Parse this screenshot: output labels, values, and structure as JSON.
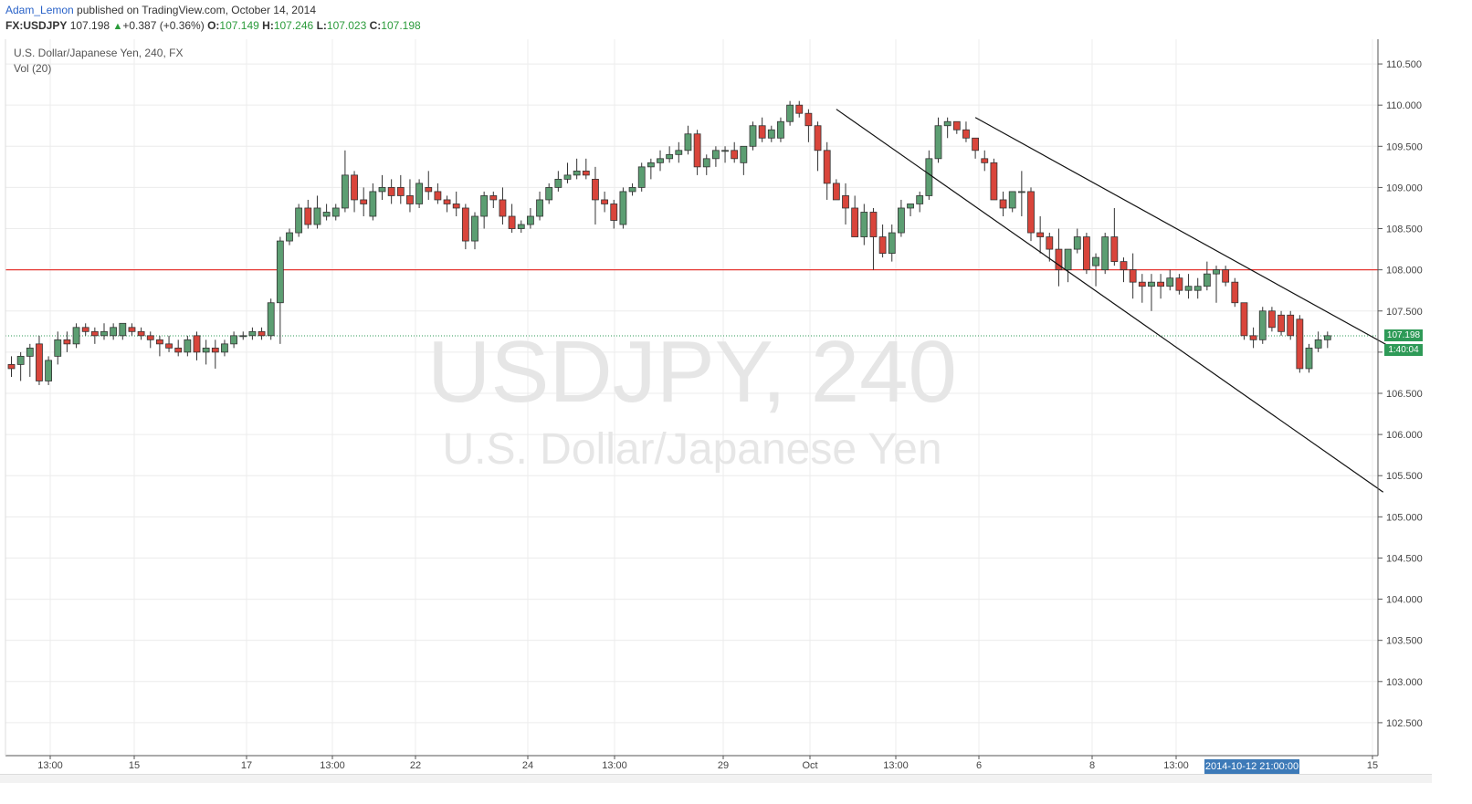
{
  "header": {
    "author": "Adam_Lemon",
    "published_text": " published on TradingView.com, October 14, 2014",
    "symbol": "FX:USDJPY",
    "last": "107.198",
    "change": "+0.387 (+0.36%)",
    "up_arrow": "▲",
    "o_label": "O:",
    "o": "107.149",
    "h_label": "H:",
    "h": "107.246",
    "l_label": "L:",
    "l": "107.023",
    "c_label": "C:",
    "c": "107.198"
  },
  "legend": {
    "title": "U.S. Dollar/Japanese Yen, 240, FX",
    "volume": "Vol (20)"
  },
  "watermark": {
    "line1": "USDJPY, 240",
    "line2": "U.S. Dollar/Japanese Yen"
  },
  "price_tags": {
    "last_price": "107.198",
    "countdown": "1:40:04"
  },
  "time_tag": "2014-10-12 21:00:00",
  "colors": {
    "up_candle": "#5c9e72",
    "down_candle": "#d9453b",
    "support_line": "#e53935",
    "price_tag": "#2e9a57",
    "time_tag": "#3d7ab8"
  },
  "chart_data": {
    "type": "candlestick",
    "y_range": [
      102.1,
      110.8
    ],
    "y_ticks": [
      "110.500",
      "110.000",
      "109.500",
      "109.000",
      "108.500",
      "108.000",
      "107.500",
      "107.000",
      "106.500",
      "106.000",
      "105.500",
      "105.000",
      "104.500",
      "104.000",
      "103.500",
      "103.000",
      "102.500"
    ],
    "x_tick_labels": [
      "13:00",
      "15",
      "17",
      "13:00",
      "22",
      "24",
      "13:00",
      "29",
      "Oct",
      "13:00",
      "6",
      "8",
      "13:00",
      "15"
    ],
    "horizontal_line": 108.0,
    "last_price_line": 107.198,
    "candles": [
      [
        106.85,
        106.95,
        106.7,
        106.8
      ],
      [
        106.85,
        107.0,
        106.65,
        106.95
      ],
      [
        106.95,
        107.1,
        106.7,
        107.05
      ],
      [
        107.1,
        107.2,
        106.6,
        106.65
      ],
      [
        106.65,
        106.95,
        106.6,
        106.9
      ],
      [
        106.95,
        107.25,
        106.85,
        107.15
      ],
      [
        107.15,
        107.25,
        107.0,
        107.1
      ],
      [
        107.1,
        107.35,
        107.05,
        107.3
      ],
      [
        107.3,
        107.35,
        107.2,
        107.25
      ],
      [
        107.25,
        107.3,
        107.1,
        107.2
      ],
      [
        107.2,
        107.35,
        107.15,
        107.25
      ],
      [
        107.2,
        107.35,
        107.15,
        107.3
      ],
      [
        107.2,
        107.35,
        107.15,
        107.35
      ],
      [
        107.3,
        107.35,
        107.2,
        107.25
      ],
      [
        107.25,
        107.3,
        107.15,
        107.2
      ],
      [
        107.2,
        107.25,
        107.05,
        107.15
      ],
      [
        107.15,
        107.2,
        106.95,
        107.1
      ],
      [
        107.1,
        107.2,
        107.0,
        107.05
      ],
      [
        107.05,
        107.15,
        106.95,
        107.0
      ],
      [
        107.0,
        107.2,
        106.95,
        107.15
      ],
      [
        107.2,
        107.25,
        106.9,
        107.0
      ],
      [
        107.0,
        107.15,
        106.85,
        107.05
      ],
      [
        107.05,
        107.15,
        106.8,
        107.0
      ],
      [
        107.0,
        107.15,
        106.95,
        107.1
      ],
      [
        107.1,
        107.25,
        107.05,
        107.2
      ],
      [
        107.2,
        107.25,
        107.15,
        107.2
      ],
      [
        107.2,
        107.3,
        107.15,
        107.25
      ],
      [
        107.25,
        107.3,
        107.15,
        107.2
      ],
      [
        107.2,
        107.65,
        107.15,
        107.6
      ],
      [
        107.6,
        108.4,
        107.1,
        108.35
      ],
      [
        108.35,
        108.5,
        108.3,
        108.45
      ],
      [
        108.45,
        108.8,
        108.4,
        108.75
      ],
      [
        108.75,
        108.85,
        108.5,
        108.55
      ],
      [
        108.55,
        108.9,
        108.5,
        108.75
      ],
      [
        108.65,
        108.8,
        108.6,
        108.7
      ],
      [
        108.65,
        108.8,
        108.6,
        108.75
      ],
      [
        108.75,
        109.45,
        108.7,
        109.15
      ],
      [
        109.15,
        109.2,
        108.7,
        108.85
      ],
      [
        108.85,
        109.0,
        108.65,
        108.8
      ],
      [
        108.65,
        109.05,
        108.6,
        108.95
      ],
      [
        108.95,
        109.15,
        108.85,
        109.0
      ],
      [
        109.0,
        109.1,
        108.8,
        108.9
      ],
      [
        109.0,
        109.15,
        108.8,
        108.9
      ],
      [
        108.9,
        109.1,
        108.7,
        108.8
      ],
      [
        108.8,
        109.1,
        108.75,
        109.05
      ],
      [
        109.0,
        109.2,
        108.85,
        108.95
      ],
      [
        108.95,
        109.05,
        108.8,
        108.85
      ],
      [
        108.85,
        108.9,
        108.7,
        108.8
      ],
      [
        108.8,
        108.95,
        108.65,
        108.75
      ],
      [
        108.75,
        108.8,
        108.25,
        108.35
      ],
      [
        108.35,
        108.7,
        108.25,
        108.65
      ],
      [
        108.65,
        108.95,
        108.5,
        108.9
      ],
      [
        108.9,
        108.95,
        108.75,
        108.85
      ],
      [
        108.85,
        109.0,
        108.55,
        108.65
      ],
      [
        108.65,
        108.8,
        108.45,
        108.5
      ],
      [
        108.5,
        108.6,
        108.45,
        108.55
      ],
      [
        108.55,
        108.75,
        108.5,
        108.65
      ],
      [
        108.65,
        108.95,
        108.6,
        108.85
      ],
      [
        108.85,
        109.05,
        108.8,
        109.0
      ],
      [
        109.0,
        109.2,
        108.95,
        109.1
      ],
      [
        109.1,
        109.3,
        109.05,
        109.15
      ],
      [
        109.15,
        109.35,
        109.1,
        109.2
      ],
      [
        109.2,
        109.35,
        109.1,
        109.15
      ],
      [
        109.1,
        109.25,
        108.55,
        108.85
      ],
      [
        108.85,
        108.95,
        108.7,
        108.8
      ],
      [
        108.8,
        108.85,
        108.5,
        108.6
      ],
      [
        108.55,
        109.0,
        108.5,
        108.95
      ],
      [
        108.95,
        109.05,
        108.9,
        109.0
      ],
      [
        109.0,
        109.3,
        108.95,
        109.25
      ],
      [
        109.25,
        109.35,
        109.1,
        109.3
      ],
      [
        109.3,
        109.45,
        109.2,
        109.35
      ],
      [
        109.35,
        109.5,
        109.3,
        109.4
      ],
      [
        109.4,
        109.55,
        109.3,
        109.45
      ],
      [
        109.45,
        109.75,
        109.4,
        109.65
      ],
      [
        109.65,
        109.7,
        109.15,
        109.25
      ],
      [
        109.25,
        109.4,
        109.15,
        109.35
      ],
      [
        109.35,
        109.5,
        109.25,
        109.45
      ],
      [
        109.45,
        109.5,
        109.3,
        109.45
      ],
      [
        109.45,
        109.55,
        109.3,
        109.35
      ],
      [
        109.3,
        109.5,
        109.15,
        109.5
      ],
      [
        109.5,
        109.8,
        109.45,
        109.75
      ],
      [
        109.75,
        109.85,
        109.55,
        109.6
      ],
      [
        109.6,
        109.75,
        109.55,
        109.7
      ],
      [
        109.6,
        109.85,
        109.55,
        109.8
      ],
      [
        109.8,
        110.05,
        109.75,
        110.0
      ],
      [
        110.0,
        110.05,
        109.85,
        109.9
      ],
      [
        109.9,
        109.95,
        109.55,
        109.75
      ],
      [
        109.75,
        109.8,
        109.2,
        109.45
      ],
      [
        109.45,
        109.55,
        108.85,
        109.05
      ],
      [
        109.05,
        109.1,
        108.85,
        108.85
      ],
      [
        108.9,
        109.05,
        108.55,
        108.75
      ],
      [
        108.75,
        108.9,
        108.4,
        108.4
      ],
      [
        108.4,
        108.8,
        108.3,
        108.7
      ],
      [
        108.7,
        108.75,
        108.0,
        108.4
      ],
      [
        108.4,
        108.55,
        108.15,
        108.2
      ],
      [
        108.2,
        108.55,
        108.1,
        108.45
      ],
      [
        108.45,
        108.85,
        108.4,
        108.75
      ],
      [
        108.75,
        108.8,
        108.65,
        108.8
      ],
      [
        108.8,
        108.95,
        108.7,
        108.9
      ],
      [
        108.9,
        109.45,
        108.85,
        109.35
      ],
      [
        109.35,
        109.85,
        109.3,
        109.75
      ],
      [
        109.75,
        109.85,
        109.6,
        109.8
      ],
      [
        109.8,
        109.8,
        109.65,
        109.7
      ],
      [
        109.7,
        109.8,
        109.55,
        109.6
      ],
      [
        109.6,
        109.6,
        109.35,
        109.45
      ],
      [
        109.35,
        109.45,
        109.2,
        109.3
      ],
      [
        109.3,
        109.35,
        108.85,
        108.85
      ],
      [
        108.85,
        108.95,
        108.65,
        108.75
      ],
      [
        108.75,
        108.95,
        108.7,
        108.95
      ],
      [
        108.95,
        109.2,
        108.65,
        108.95
      ],
      [
        108.95,
        109.0,
        108.35,
        108.45
      ],
      [
        108.45,
        108.65,
        108.2,
        108.4
      ],
      [
        108.4,
        108.45,
        108.1,
        108.25
      ],
      [
        108.25,
        108.5,
        107.8,
        108.0
      ],
      [
        108.0,
        108.25,
        107.85,
        108.25
      ],
      [
        108.25,
        108.5,
        108.2,
        108.4
      ],
      [
        108.4,
        108.45,
        107.95,
        108.0
      ],
      [
        108.05,
        108.2,
        107.8,
        108.15
      ],
      [
        108.0,
        108.45,
        107.95,
        108.4
      ],
      [
        108.4,
        108.75,
        108.05,
        108.1
      ],
      [
        108.1,
        108.15,
        107.85,
        108.0
      ],
      [
        108.0,
        108.2,
        107.65,
        107.85
      ],
      [
        107.85,
        107.95,
        107.6,
        107.8
      ],
      [
        107.8,
        107.95,
        107.5,
        107.85
      ],
      [
        107.85,
        107.95,
        107.65,
        107.8
      ],
      [
        107.8,
        108.0,
        107.75,
        107.9
      ],
      [
        107.9,
        107.95,
        107.7,
        107.75
      ],
      [
        107.75,
        107.95,
        107.65,
        107.8
      ],
      [
        107.75,
        107.9,
        107.65,
        107.8
      ],
      [
        107.8,
        108.1,
        107.75,
        107.95
      ],
      [
        107.95,
        108.05,
        107.6,
        108.0
      ],
      [
        108.0,
        108.05,
        107.8,
        107.85
      ],
      [
        107.85,
        107.9,
        107.55,
        107.6
      ],
      [
        107.6,
        107.6,
        107.15,
        107.2
      ],
      [
        107.2,
        107.3,
        107.05,
        107.15
      ],
      [
        107.15,
        107.55,
        107.1,
        107.5
      ],
      [
        107.5,
        107.55,
        107.25,
        107.3
      ],
      [
        107.45,
        107.5,
        107.2,
        107.25
      ],
      [
        107.45,
        107.5,
        107.15,
        107.2
      ],
      [
        107.4,
        107.45,
        106.75,
        106.8
      ],
      [
        106.8,
        107.1,
        106.75,
        107.05
      ],
      [
        107.05,
        107.25,
        107.0,
        107.15
      ],
      [
        107.15,
        107.25,
        107.05,
        107.2
      ]
    ],
    "trend_lines": [
      {
        "from": {
          "bar": 89,
          "price": 109.95
        },
        "to": {
          "bar": 148,
          "price": 105.3
        }
      },
      {
        "from": {
          "bar": 104,
          "price": 109.85
        },
        "to": {
          "bar": 149,
          "price": 107.05
        }
      }
    ]
  }
}
